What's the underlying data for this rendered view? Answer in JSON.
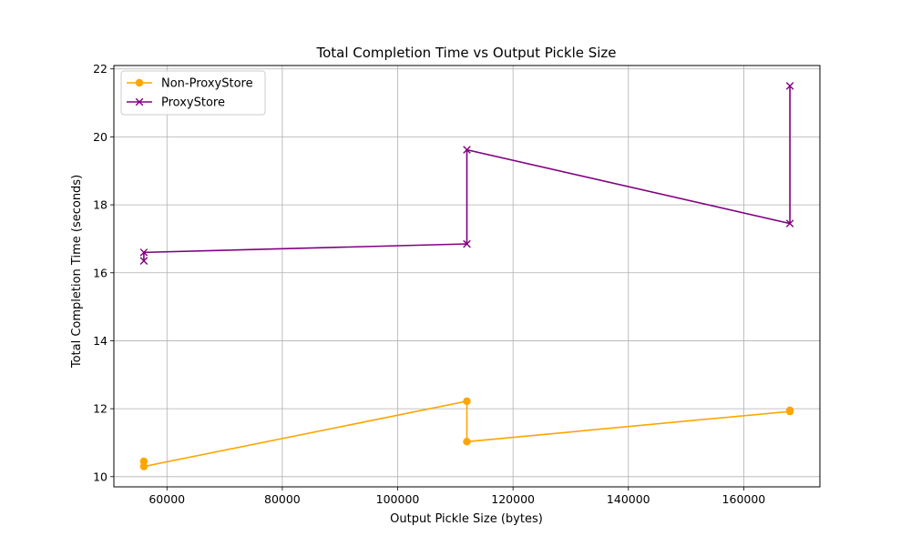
{
  "chart_data": {
    "type": "line",
    "title": "Total Completion Time vs Output Pickle Size",
    "xlabel": "Output Pickle Size (bytes)",
    "ylabel": "Total Completion Time (seconds)",
    "xlim": [
      50800,
      173200
    ],
    "ylim": [
      9.7,
      22.1
    ],
    "x_ticks": [
      60000,
      80000,
      100000,
      120000,
      140000,
      160000
    ],
    "y_ticks": [
      10,
      12,
      14,
      16,
      18,
      20,
      22
    ],
    "grid": true,
    "legend_position": "top-left",
    "series": [
      {
        "name": "Non-ProxyStore",
        "color": "#ffa500",
        "marker": "circle",
        "x": [
          56000,
          56000,
          112000,
          112000,
          168000,
          168000
        ],
        "y": [
          10.45,
          10.3,
          12.22,
          11.03,
          11.92,
          11.95
        ]
      },
      {
        "name": "ProxyStore",
        "color": "#800080",
        "marker": "x",
        "x": [
          56000,
          56000,
          112000,
          112000,
          168000,
          168000
        ],
        "y": [
          16.35,
          16.6,
          16.85,
          19.62,
          17.45,
          21.5
        ]
      }
    ]
  }
}
